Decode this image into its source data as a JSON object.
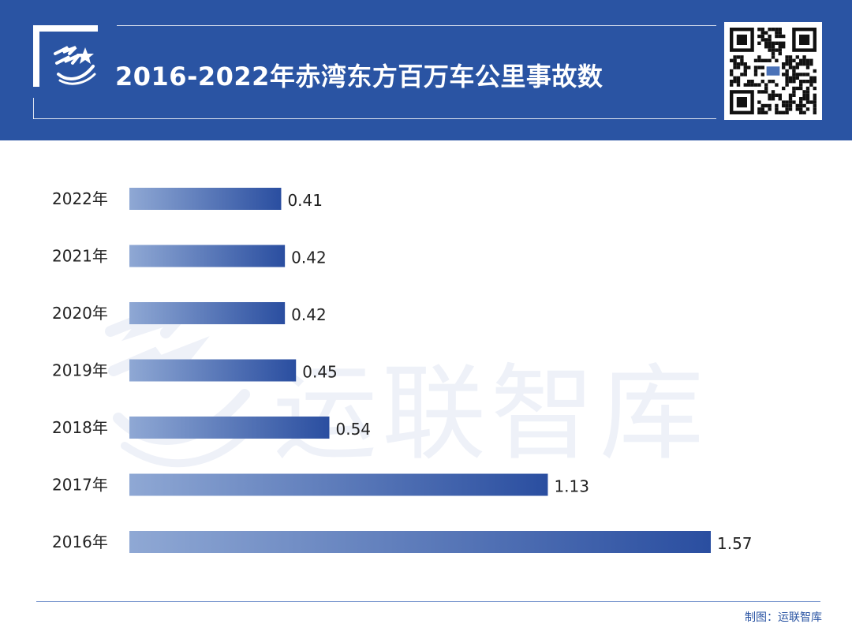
{
  "title": "2016-2022年赤湾东方百万车公里事故数",
  "watermark": "运联智库",
  "credit": "制图：运联智库",
  "colors": {
    "header": "#2a54a3",
    "bar_start": "#8fa8d4",
    "bar_end": "#2a4ea0",
    "text": "#222222",
    "footer_line": "#7f9cd0"
  },
  "chart_data": {
    "type": "bar",
    "orientation": "horizontal",
    "categories": [
      "2022年",
      "2021年",
      "2020年",
      "2019年",
      "2018年",
      "2017年",
      "2016年"
    ],
    "values": [
      0.41,
      0.42,
      0.42,
      0.45,
      0.54,
      1.13,
      1.57
    ],
    "value_labels": [
      "0.41",
      "0.42",
      "0.42",
      "0.45",
      "0.54",
      "1.13",
      "1.57"
    ],
    "xlim": [
      0,
      1.57
    ],
    "grid": false,
    "legend": "none"
  }
}
